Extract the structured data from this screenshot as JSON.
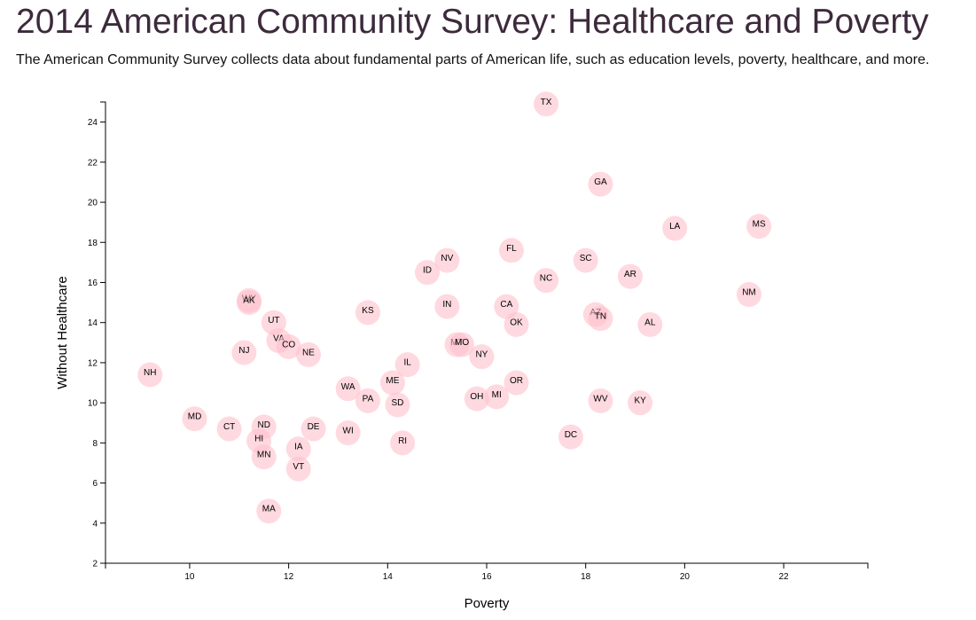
{
  "header": {
    "title": "2014 American Community Survey: Healthcare and Poverty",
    "subtitle": "The American Community Survey collects data about fundamental parts of American life, such as education levels, poverty, healthcare, and more."
  },
  "colors": {
    "title": "#3d2a3c",
    "marker": "#ffc0cb"
  },
  "chart_data": {
    "type": "scatter",
    "title": "",
    "xlabel": "Poverty",
    "ylabel": "Without Healthcare",
    "xlim": [
      8.3,
      23.7
    ],
    "ylim": [
      2,
      25
    ],
    "xticks": [
      10,
      12,
      14,
      16,
      18,
      20,
      22
    ],
    "yticks": [
      2,
      4,
      6,
      8,
      10,
      12,
      14,
      16,
      18,
      20,
      22,
      24
    ],
    "grid": false,
    "points": [
      {
        "label": "TX",
        "x": 17.2,
        "y": 24.9
      },
      {
        "label": "GA",
        "x": 18.3,
        "y": 20.9
      },
      {
        "label": "LA",
        "x": 19.8,
        "y": 18.7
      },
      {
        "label": "MS",
        "x": 21.5,
        "y": 18.8
      },
      {
        "label": "FL",
        "x": 16.5,
        "y": 17.6
      },
      {
        "label": "NV",
        "x": 15.2,
        "y": 17.1
      },
      {
        "label": "SC",
        "x": 18.0,
        "y": 17.1
      },
      {
        "label": "ID",
        "x": 14.8,
        "y": 16.5
      },
      {
        "label": "AR",
        "x": 18.9,
        "y": 16.3
      },
      {
        "label": "NC",
        "x": 17.2,
        "y": 16.1
      },
      {
        "label": "NM",
        "x": 21.3,
        "y": 15.4
      },
      {
        "label": "WY",
        "x": 11.2,
        "y": 15.1
      },
      {
        "label": "AK",
        "x": 11.2,
        "y": 15.0
      },
      {
        "label": "IN",
        "x": 15.2,
        "y": 14.8
      },
      {
        "label": "CA",
        "x": 16.4,
        "y": 14.8
      },
      {
        "label": "KS",
        "x": 13.6,
        "y": 14.5
      },
      {
        "label": "AZ",
        "x": 18.2,
        "y": 14.4
      },
      {
        "label": "TN",
        "x": 18.3,
        "y": 14.2
      },
      {
        "label": "OK",
        "x": 16.6,
        "y": 13.9
      },
      {
        "label": "AL",
        "x": 19.3,
        "y": 13.9
      },
      {
        "label": "UT",
        "x": 11.7,
        "y": 14.0
      },
      {
        "label": "VA",
        "x": 11.8,
        "y": 13.1
      },
      {
        "label": "CO",
        "x": 12.0,
        "y": 12.8
      },
      {
        "label": "MT",
        "x": 15.4,
        "y": 12.9
      },
      {
        "label": "MO",
        "x": 15.5,
        "y": 12.9
      },
      {
        "label": "NJ",
        "x": 11.1,
        "y": 12.5
      },
      {
        "label": "NE",
        "x": 12.4,
        "y": 12.4
      },
      {
        "label": "NY",
        "x": 15.9,
        "y": 12.3
      },
      {
        "label": "IL",
        "x": 14.4,
        "y": 11.9
      },
      {
        "label": "NH",
        "x": 9.2,
        "y": 11.4
      },
      {
        "label": "ME",
        "x": 14.1,
        "y": 11.0
      },
      {
        "label": "OR",
        "x": 16.6,
        "y": 11.0
      },
      {
        "label": "WA",
        "x": 13.2,
        "y": 10.7
      },
      {
        "label": "PA",
        "x": 13.6,
        "y": 10.1
      },
      {
        "label": "OH",
        "x": 15.8,
        "y": 10.2
      },
      {
        "label": "MI",
        "x": 16.2,
        "y": 10.3
      },
      {
        "label": "SD",
        "x": 14.2,
        "y": 9.9
      },
      {
        "label": "WV",
        "x": 18.3,
        "y": 10.1
      },
      {
        "label": "KY",
        "x": 19.1,
        "y": 10.0
      },
      {
        "label": "MD",
        "x": 10.1,
        "y": 9.2
      },
      {
        "label": "CT",
        "x": 10.8,
        "y": 8.7
      },
      {
        "label": "ND",
        "x": 11.5,
        "y": 8.8
      },
      {
        "label": "DE",
        "x": 12.5,
        "y": 8.7
      },
      {
        "label": "WI",
        "x": 13.2,
        "y": 8.5
      },
      {
        "label": "DC",
        "x": 17.7,
        "y": 8.3
      },
      {
        "label": "HI",
        "x": 11.4,
        "y": 8.1
      },
      {
        "label": "RI",
        "x": 14.3,
        "y": 8.0
      },
      {
        "label": "IA",
        "x": 12.2,
        "y": 7.7
      },
      {
        "label": "MN",
        "x": 11.5,
        "y": 7.3
      },
      {
        "label": "VT",
        "x": 12.2,
        "y": 6.7
      },
      {
        "label": "MA",
        "x": 11.6,
        "y": 4.6
      }
    ]
  }
}
